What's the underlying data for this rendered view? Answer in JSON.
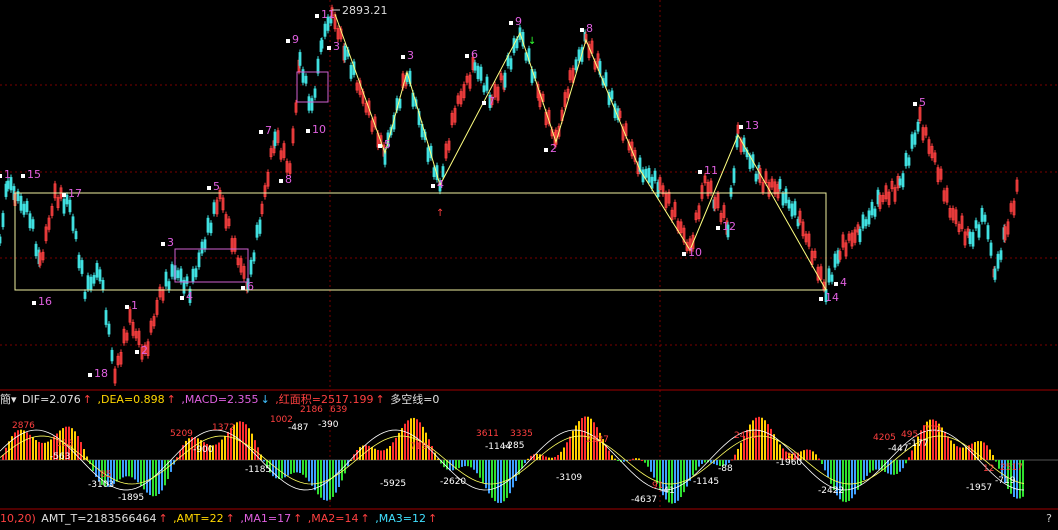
{
  "price_panel": {
    "price_label": "2893.21",
    "wave_labels": {
      "top": [
        "11",
        "9",
        "3",
        "10",
        "3",
        "5",
        "6",
        "7",
        "9",
        "8",
        "2",
        "4",
        "7",
        "8",
        "11",
        "12",
        "10",
        "13",
        "5",
        "14",
        "4",
        "1",
        "15",
        "17",
        "16",
        "5",
        "3",
        "4",
        "6",
        "1",
        "2",
        "18"
      ]
    }
  },
  "macd_bar": {
    "menu": "簡▾",
    "dif": "DIF=2.076",
    "dea": ",DEA=0.898",
    "macd": ",MACD=2.355",
    "red_area": ",红面积=2517.199",
    "multi_line": "多空线=0",
    "arrow_up": "↑",
    "arrow_down": "↓"
  },
  "macd_labels": [
    "2876",
    "633",
    "-563",
    "-3103",
    "85",
    "-1895",
    "5209",
    "-900",
    "1372",
    "1002",
    "2186",
    "639",
    "-487",
    "-390",
    "-1185",
    "719",
    "-5925",
    "-2620",
    "3611",
    "3335",
    "-1144",
    "-285",
    "2337",
    "-3109",
    "2401",
    "-4637",
    "91",
    "-41",
    "-1145",
    "-88",
    "-1960",
    "31",
    "-2422",
    "4205",
    "495",
    "770",
    "-447",
    "-177",
    "12",
    "2517",
    "-1957",
    "-719"
  ],
  "amt_bar": {
    "prefix": "10,20)",
    "amt_t": "AMT_T=2183566464",
    "amt": ",AMT=22",
    "ma1": ",MA1=17",
    "ma2": ",MA2=14",
    "ma3": ",MA3=12",
    "arrow": "↑",
    "help": "?"
  },
  "colors": {
    "up": "#ff4040",
    "down": "#40e0e0",
    "zigzag": "#ffff80",
    "box": "#f0f0a0",
    "wave_label": "#e060e0",
    "grid": "#7a0000"
  }
}
